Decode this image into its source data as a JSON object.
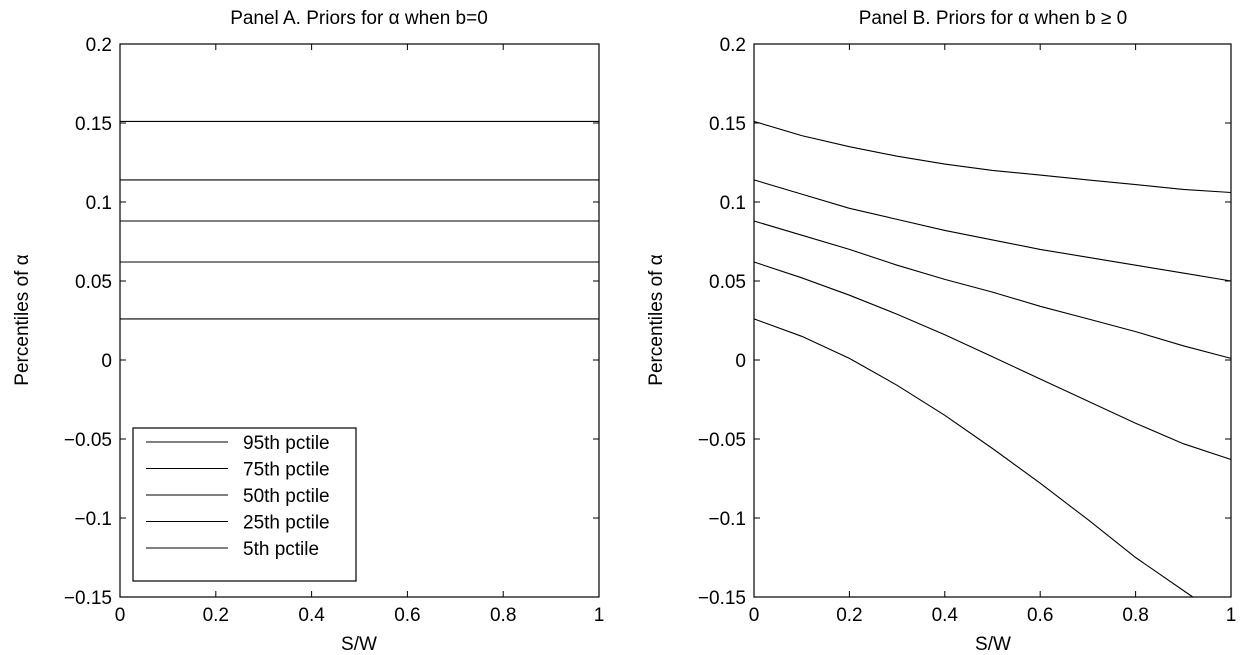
{
  "chart_data": [
    {
      "type": "line",
      "title": "Panel A.  Priors for α when b=0",
      "xlabel": "S/W",
      "ylabel": "Percentiles of α",
      "xlim": [
        0,
        1
      ],
      "ylim": [
        -0.15,
        0.2
      ],
      "xticks": [
        0,
        0.2,
        0.4,
        0.6,
        0.8,
        1
      ],
      "xtick_labels": [
        "0",
        "0.2",
        "0.4",
        "0.6",
        "0.8",
        "1"
      ],
      "yticks": [
        -0.15,
        -0.1,
        -0.05,
        0,
        0.05,
        0.1,
        0.15,
        0.2
      ],
      "ytick_labels": [
        "−0.15",
        "−0.1",
        "−0.05",
        "0",
        "0.05",
        "0.1",
        "0.15",
        "0.2"
      ],
      "grid": false,
      "legend": "bottom-left",
      "series": [
        {
          "name": "95th pctile",
          "x": [
            0,
            1
          ],
          "y": [
            0.151,
            0.151
          ]
        },
        {
          "name": "75th pctile",
          "x": [
            0,
            1
          ],
          "y": [
            0.114,
            0.114
          ]
        },
        {
          "name": "50th pctile",
          "x": [
            0,
            1
          ],
          "y": [
            0.088,
            0.088
          ]
        },
        {
          "name": "25th pctile",
          "x": [
            0,
            1
          ],
          "y": [
            0.062,
            0.062
          ]
        },
        {
          "name": "5th pctile",
          "x": [
            0,
            1
          ],
          "y": [
            0.026,
            0.026
          ]
        }
      ]
    },
    {
      "type": "line",
      "title": "Panel B.  Priors for α when b ≥ 0",
      "xlabel": "S/W",
      "ylabel": "Percentiles of α",
      "xlim": [
        0,
        1
      ],
      "ylim": [
        -0.15,
        0.2
      ],
      "xticks": [
        0,
        0.2,
        0.4,
        0.6,
        0.8,
        1
      ],
      "xtick_labels": [
        "0",
        "0.2",
        "0.4",
        "0.6",
        "0.8",
        "1"
      ],
      "yticks": [
        -0.15,
        -0.1,
        -0.05,
        0,
        0.05,
        0.1,
        0.15,
        0.2
      ],
      "ytick_labels": [
        "−0.15",
        "−0.1",
        "−0.05",
        "0",
        "0.05",
        "0.1",
        "0.15",
        "0.2"
      ],
      "grid": false,
      "series": [
        {
          "name": "95th pctile",
          "x": [
            0,
            0.1,
            0.2,
            0.3,
            0.4,
            0.5,
            0.6,
            0.7,
            0.8,
            0.9,
            1.0
          ],
          "y": [
            0.151,
            0.142,
            0.135,
            0.129,
            0.124,
            0.12,
            0.117,
            0.114,
            0.111,
            0.108,
            0.106
          ]
        },
        {
          "name": "75th pctile",
          "x": [
            0,
            0.1,
            0.2,
            0.3,
            0.4,
            0.5,
            0.6,
            0.7,
            0.8,
            0.9,
            1.0
          ],
          "y": [
            0.114,
            0.105,
            0.096,
            0.089,
            0.082,
            0.076,
            0.07,
            0.065,
            0.06,
            0.055,
            0.05
          ]
        },
        {
          "name": "50th pctile",
          "x": [
            0,
            0.1,
            0.2,
            0.3,
            0.4,
            0.5,
            0.6,
            0.7,
            0.8,
            0.9,
            1.0
          ],
          "y": [
            0.088,
            0.079,
            0.07,
            0.06,
            0.051,
            0.043,
            0.034,
            0.026,
            0.018,
            0.009,
            0.001
          ]
        },
        {
          "name": "25th pctile",
          "x": [
            0,
            0.1,
            0.2,
            0.3,
            0.4,
            0.5,
            0.6,
            0.7,
            0.8,
            0.9,
            1.0
          ],
          "y": [
            0.062,
            0.052,
            0.041,
            0.029,
            0.016,
            0.002,
            -0.012,
            -0.026,
            -0.04,
            -0.053,
            -0.063
          ]
        },
        {
          "name": "5th pctile",
          "x": [
            0,
            0.1,
            0.2,
            0.3,
            0.4,
            0.5,
            0.6,
            0.7,
            0.8,
            0.92
          ],
          "y": [
            0.026,
            0.015,
            0.001,
            -0.016,
            -0.035,
            -0.056,
            -0.078,
            -0.101,
            -0.125,
            -0.15
          ]
        }
      ]
    }
  ]
}
